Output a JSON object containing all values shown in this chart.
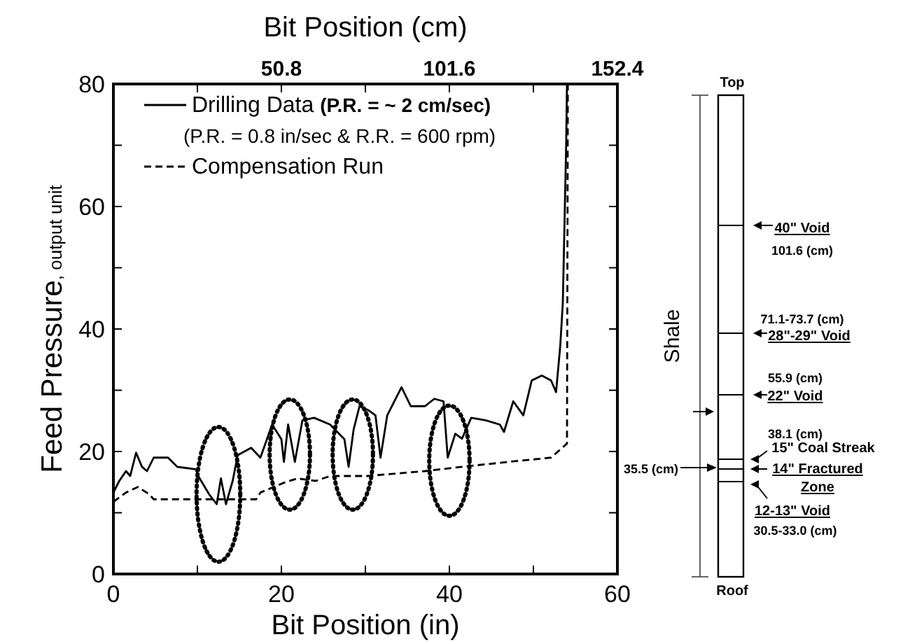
{
  "chart_data": {
    "type": "line",
    "xlabel": "Bit Position (in)",
    "x2label": "Bit Position (cm)",
    "ylabel": "Feed Pressure, output unit",
    "xlim": [
      0,
      60
    ],
    "xticks": [
      0,
      {
        "value": 10,
        "label": null
      },
      20,
      {
        "value": 30,
        "label": null
      },
      40,
      {
        "value": 50,
        "label": null
      },
      60
    ],
    "x2lim": [
      0,
      152.4
    ],
    "x2ticks": [
      {
        "value": 25.4,
        "label": null
      },
      50.8,
      {
        "value": 76.2,
        "label": null
      },
      101.6,
      {
        "value": 127,
        "label": null
      },
      152.4
    ],
    "ylim": [
      0,
      80
    ],
    "yticks": [
      0,
      {
        "value": 10,
        "label": null
      },
      20,
      {
        "value": 30,
        "label": null
      },
      40,
      {
        "value": 50,
        "label": null
      },
      60,
      {
        "value": 70,
        "label": null
      },
      80
    ],
    "grid": false,
    "legend": "top left",
    "series": [
      {
        "name": "Drilling Data (P.R. = ~ 2 cm/sec)",
        "color": "#000000",
        "line_style": "solid",
        "x": [
          0,
          0.7,
          1.5,
          2,
          2.7,
          3.4,
          4,
          4.8,
          6.5,
          7.6,
          9.8,
          10.1,
          11.4,
          12.3,
          12.8,
          13.4,
          14.2,
          14.8,
          16.4,
          17.5,
          18.9,
          20,
          20.3,
          20.8,
          21.6,
          22.5,
          23.9,
          25.8,
          27.5,
          28,
          28.6,
          29.3,
          30.4,
          31.2,
          31.8,
          32.6,
          34.3,
          35.4,
          37.1,
          38.2,
          39.3,
          39.8,
          40.7,
          41.5,
          42.6,
          44.3,
          46,
          46.5,
          47.6,
          48.8,
          49.8,
          51,
          52.1,
          52.7,
          53.2,
          53.5,
          53.9,
          54
        ],
        "values": [
          13.3,
          15.2,
          16.8,
          16,
          19.8,
          17.5,
          16.8,
          19,
          19,
          17.5,
          17.1,
          16,
          13,
          11.4,
          15.6,
          11.4,
          15.2,
          19.4,
          20.6,
          19,
          24.4,
          22,
          18.3,
          24.4,
          18.3,
          25.1,
          25.5,
          24.4,
          22,
          17.5,
          23.6,
          27.4,
          26.7,
          25.9,
          19,
          25.9,
          30.5,
          27.4,
          27.4,
          28.6,
          28.2,
          19,
          22.9,
          22.1,
          25.5,
          25.1,
          24.4,
          23.2,
          28.2,
          25.9,
          31.6,
          32.4,
          31.6,
          29.7,
          37.3,
          44.2,
          70,
          80
        ]
      },
      {
        "name": "Compensation Run",
        "color": "#000000",
        "line_style": "dashed",
        "x": [
          0,
          1.5,
          2.9,
          4.3,
          4.8,
          9.2,
          17,
          17.5,
          20.3,
          21.9,
          24.1,
          25.8,
          30.2,
          37.1,
          41.5,
          47,
          52.1,
          54,
          54.1
        ],
        "values": [
          11.8,
          13.3,
          14.2,
          13,
          12.2,
          12.2,
          12.2,
          13.3,
          14.9,
          15.6,
          15.2,
          16,
          16,
          16.8,
          17.5,
          18.3,
          19,
          21.3,
          80
        ]
      }
    ],
    "annotations": [
      "(P.R. = 0.8 in/sec & R.R. = 600 rpm)",
      "Top",
      "Roof",
      "Shale",
      "40\" Void",
      "101.6 (cm)",
      "71.1-73.7 (cm)",
      "28\"-29\" Void",
      "55.9 (cm)",
      "22\" Void",
      "38.1 (cm)",
      "15\" Coal Streak",
      "35.5 (cm)",
      "14\" Fractured Zone",
      "12-13\" Void",
      "30.5-33.0 (cm)"
    ]
  }
}
